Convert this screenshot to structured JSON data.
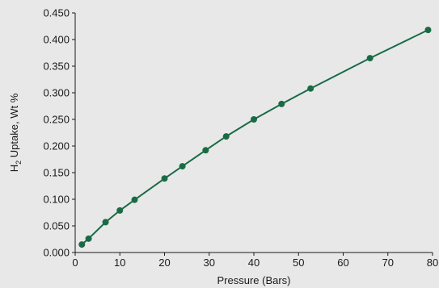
{
  "chart_data": {
    "type": "line",
    "xlabel": "Pressure (Bars)",
    "ylabel_parts": {
      "main": "H",
      "sub": "2",
      "rest": " Uptake, Wt %"
    },
    "xlim": [
      0,
      80
    ],
    "ylim": [
      0,
      0.45
    ],
    "xticks": [
      "0",
      "10",
      "20",
      "30",
      "40",
      "50",
      "60",
      "70",
      "80"
    ],
    "yticks": [
      "0.000",
      "0.050",
      "0.100",
      "0.150",
      "0.200",
      "0.250",
      "0.300",
      "0.350",
      "0.400",
      "0.450"
    ],
    "grid": false,
    "series": [
      {
        "color": "#1a6b45",
        "x": [
          1.5,
          3.0,
          6.8,
          10.0,
          13.3,
          20.0,
          24.0,
          29.2,
          33.8,
          40.0,
          46.2,
          52.7,
          66.0,
          79.0
        ],
        "y": [
          0.015,
          0.026,
          0.057,
          0.079,
          0.099,
          0.139,
          0.162,
          0.192,
          0.218,
          0.25,
          0.279,
          0.308,
          0.365,
          0.418
        ]
      }
    ]
  }
}
